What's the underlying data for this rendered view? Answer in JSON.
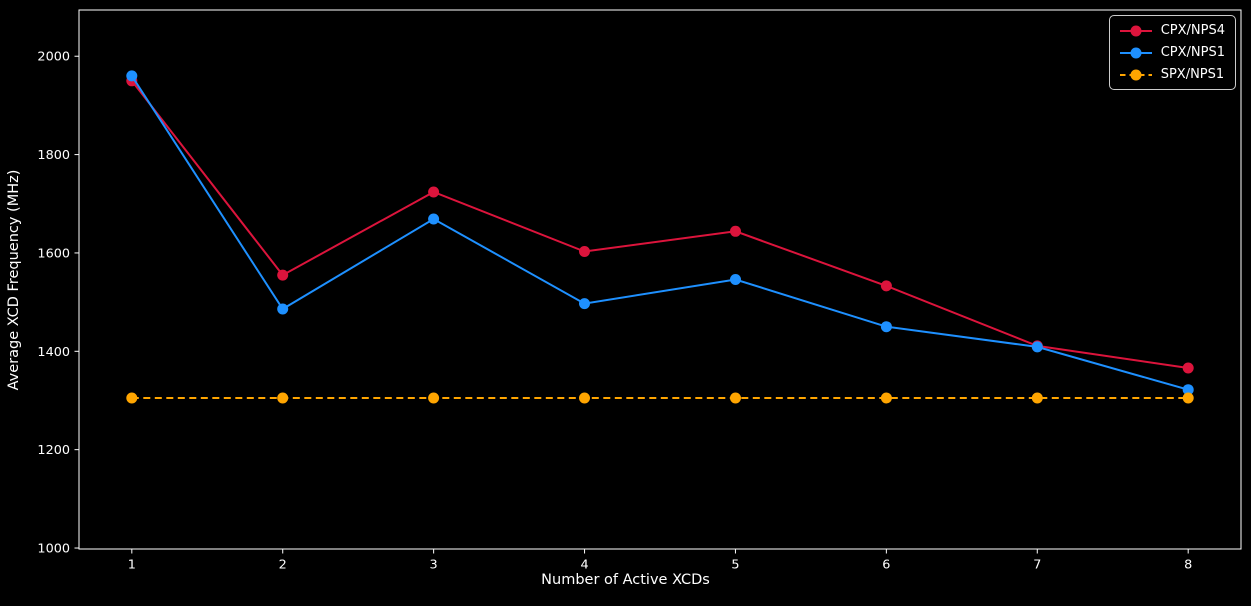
{
  "figure": {
    "background": "#000000",
    "text_color": "#ffffff",
    "axis_color": "#ffffff",
    "legend_border_color": "#cccccc"
  },
  "chart_data": {
    "type": "line",
    "title": "",
    "xlabel": "Number of Active XCDs",
    "ylabel": "Average XCD Frequency (MHz)",
    "x": [
      1,
      2,
      3,
      4,
      5,
      6,
      7,
      8
    ],
    "xticks": [
      "1",
      "2",
      "3",
      "4",
      "5",
      "6",
      "7",
      "8"
    ],
    "yticks": [
      1000,
      1200,
      1400,
      1600,
      1800,
      2000
    ],
    "xlim": [
      0.65,
      8.35
    ],
    "ylim": [
      998,
      2094
    ],
    "grid": false,
    "legend_position": "upper right",
    "series": [
      {
        "name": "CPX/NPS4",
        "color": "#DC143C",
        "line_style": "solid",
        "marker": "circle",
        "values": [
          1950,
          1555,
          1724,
          1603,
          1644,
          1533,
          1411,
          1366
        ]
      },
      {
        "name": "CPX/NPS1",
        "color": "#1E90FF",
        "line_style": "solid",
        "marker": "circle",
        "values": [
          1960,
          1486,
          1669,
          1497,
          1546,
          1450,
          1409,
          1322
        ]
      },
      {
        "name": "SPX/NPS1",
        "color": "#FFA500",
        "line_style": "dashed",
        "marker": "circle",
        "values": [
          1305,
          1305,
          1305,
          1305,
          1305,
          1305,
          1305,
          1305
        ]
      }
    ]
  }
}
